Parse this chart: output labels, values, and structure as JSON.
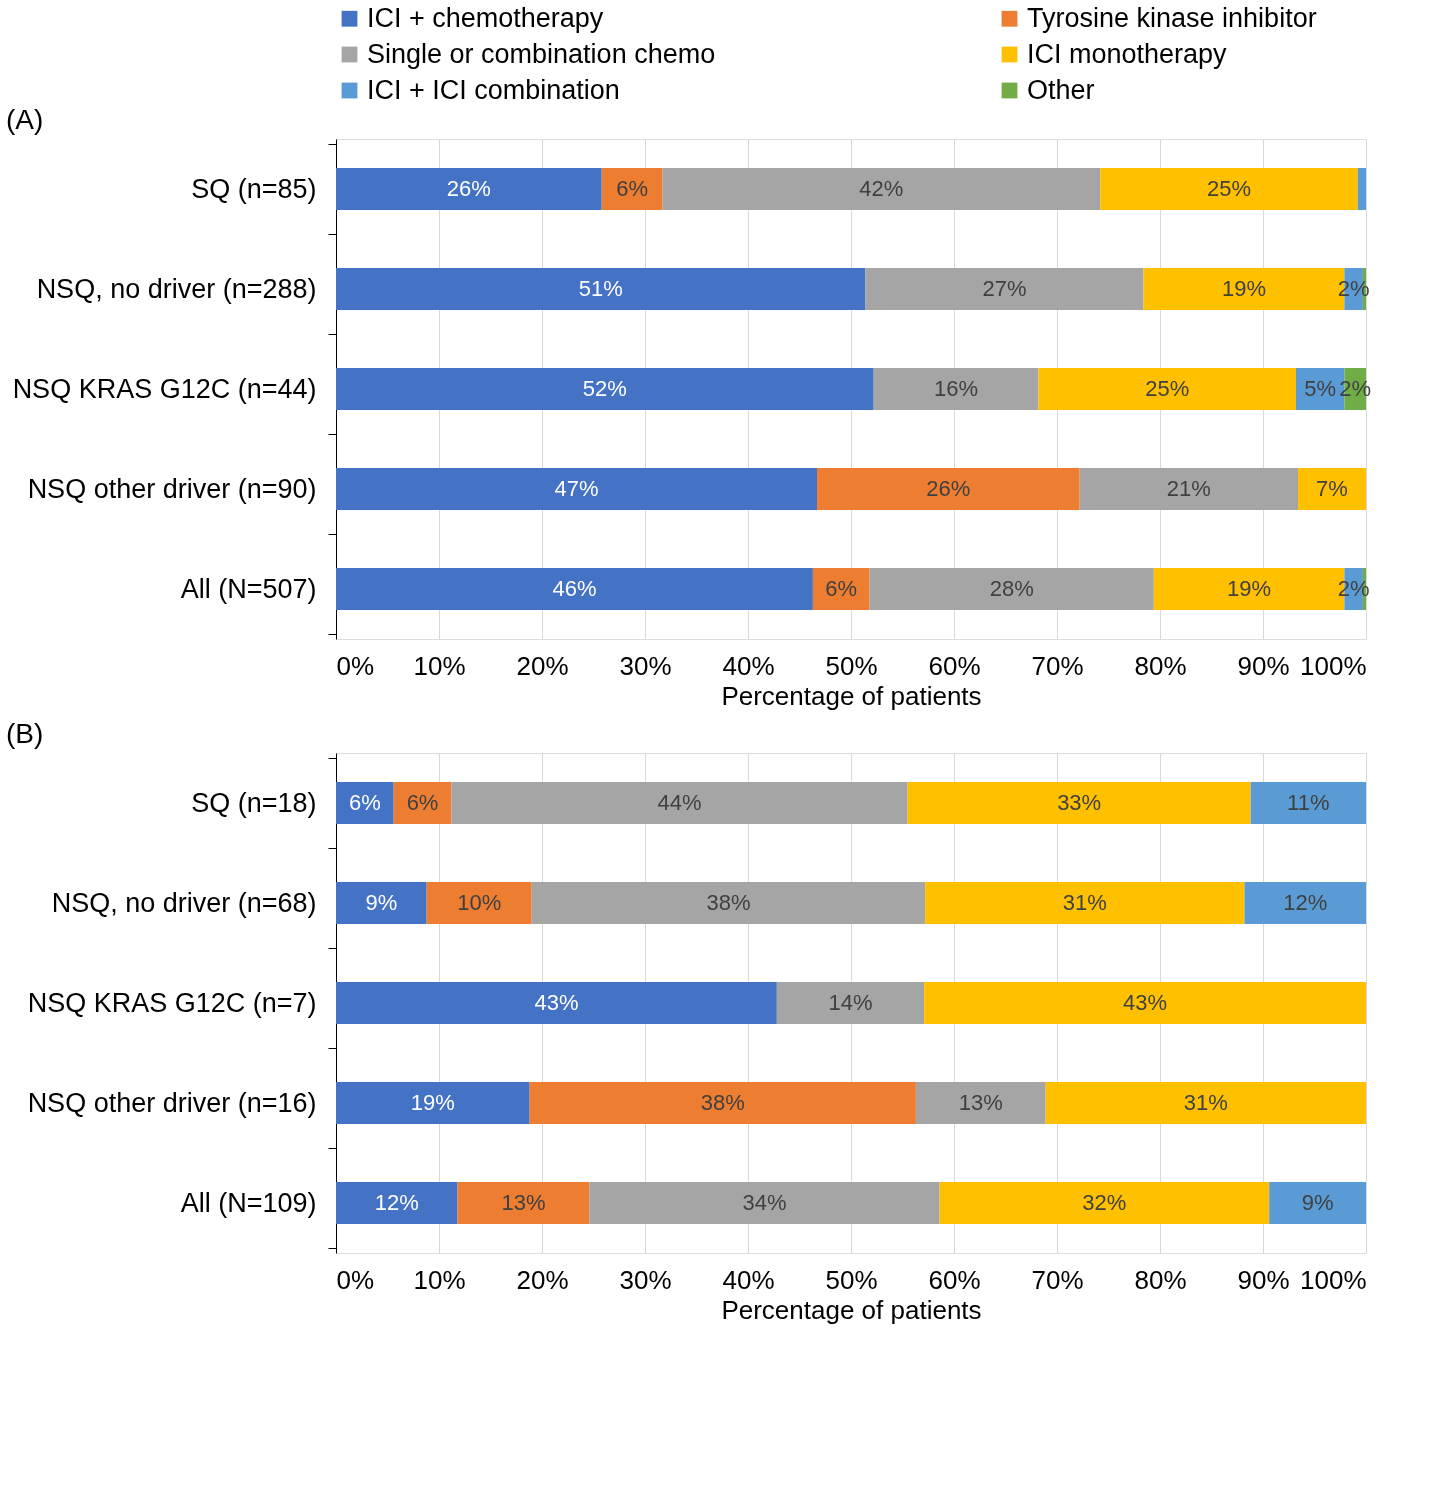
{
  "chart_data": [
    {
      "type": "bar",
      "orientation": "horizontal",
      "stacked": true,
      "title": "(A)",
      "xlabel": "Percentage of patients",
      "legend": "top",
      "grid": "x",
      "categories": [
        "SQ (n=85)",
        "NSQ, no driver (n=288)",
        "NSQ KRAS G12C (n=44)",
        "NSQ other driver (n=90)",
        "All (N=507)"
      ],
      "xlim": [
        0,
        100
      ],
      "xticks": [
        {
          "value": 0,
          "label": "0%"
        },
        {
          "value": 10,
          "label": "10%"
        },
        {
          "value": 20,
          "label": "20%"
        },
        {
          "value": 30,
          "label": "30%"
        },
        {
          "value": 40,
          "label": "40%"
        },
        {
          "value": 50,
          "label": "50%"
        },
        {
          "value": 60,
          "label": "60%"
        },
        {
          "value": 70,
          "label": "70%"
        },
        {
          "value": 80,
          "label": "80%"
        },
        {
          "value": 90,
          "label": "90%"
        },
        {
          "value": 100,
          "label": "100%"
        }
      ],
      "series": [
        {
          "name": "ICI + chemotherapy",
          "color": "#4472c4",
          "values": [
            25.8,
            51.4,
            52.2,
            46.7,
            46.3
          ],
          "value_labels": [
            "26%",
            "51%",
            "52%",
            "47%",
            "46%"
          ]
        },
        {
          "name": "Tyrosine kinase inhibitor",
          "color": "#ed7d31",
          "values": [
            5.9,
            null,
            null,
            25.5,
            5.5
          ],
          "value_labels": [
            "6%",
            null,
            null,
            "26%",
            "6%"
          ]
        },
        {
          "name": "Single or combination chemo",
          "color": "#a5a5a5",
          "values": [
            42.5,
            27.0,
            16.0,
            21.2,
            27.6
          ],
          "value_labels": [
            "42%",
            "27%",
            "16%",
            "21%",
            "28%"
          ]
        },
        {
          "name": "ICI monotherapy",
          "color": "#ffc000",
          "values": [
            25.0,
            19.5,
            25.0,
            6.6,
            18.5
          ],
          "value_labels": [
            "25%",
            "19%",
            "25%",
            "7%",
            "19%"
          ]
        },
        {
          "name": "ICI + ICI combination",
          "color": "#5b9bd5",
          "values": [
            0.8,
            1.8,
            4.7,
            null,
            1.8
          ],
          "value_labels": [
            null,
            "2%",
            "5%",
            null,
            "2%"
          ]
        },
        {
          "name": "Other",
          "color": "#70ad47",
          "values": [
            null,
            0.3,
            2.1,
            null,
            0.3
          ],
          "value_labels": [
            null,
            null,
            "2%",
            null,
            null
          ]
        }
      ]
    },
    {
      "type": "bar",
      "orientation": "horizontal",
      "stacked": true,
      "title": "(B)",
      "xlabel": "Percentage of patients",
      "legend": "top",
      "grid": "x",
      "categories": [
        "SQ (n=18)",
        "NSQ, no driver (n=68)",
        "NSQ KRAS G12C (n=7)",
        "NSQ other driver (n=16)",
        "All (N=109)"
      ],
      "xlim": [
        0,
        100
      ],
      "xticks": [
        {
          "value": 0,
          "label": "0%"
        },
        {
          "value": 10,
          "label": "10%"
        },
        {
          "value": 20,
          "label": "20%"
        },
        {
          "value": 30,
          "label": "30%"
        },
        {
          "value": 40,
          "label": "40%"
        },
        {
          "value": 50,
          "label": "50%"
        },
        {
          "value": 60,
          "label": "60%"
        },
        {
          "value": 70,
          "label": "70%"
        },
        {
          "value": 80,
          "label": "80%"
        },
        {
          "value": 90,
          "label": "90%"
        },
        {
          "value": 100,
          "label": "100%"
        }
      ],
      "series": [
        {
          "name": "ICI + chemotherapy",
          "color": "#4472c4",
          "values": [
            5.6,
            8.8,
            42.8,
            18.8,
            11.8
          ],
          "value_labels": [
            "6%",
            "9%",
            "43%",
            "19%",
            "12%"
          ]
        },
        {
          "name": "Tyrosine kinase inhibitor",
          "color": "#ed7d31",
          "values": [
            5.6,
            10.2,
            null,
            37.5,
            12.8
          ],
          "value_labels": [
            "6%",
            "10%",
            null,
            "38%",
            "13%"
          ]
        },
        {
          "name": "Single or combination chemo",
          "color": "#a5a5a5",
          "values": [
            44.3,
            38.2,
            14.3,
            12.6,
            34.0
          ],
          "value_labels": [
            "44%",
            "38%",
            "14%",
            "13%",
            "34%"
          ]
        },
        {
          "name": "ICI monotherapy",
          "color": "#ffc000",
          "values": [
            33.3,
            31.0,
            42.9,
            31.1,
            32.0
          ],
          "value_labels": [
            "33%",
            "31%",
            "43%",
            "31%",
            "32%"
          ]
        },
        {
          "name": "ICI + ICI combination",
          "color": "#5b9bd5",
          "values": [
            11.2,
            11.8,
            null,
            null,
            9.4
          ],
          "value_labels": [
            "11%",
            "12%",
            null,
            null,
            "9%"
          ]
        }
      ]
    }
  ]
}
